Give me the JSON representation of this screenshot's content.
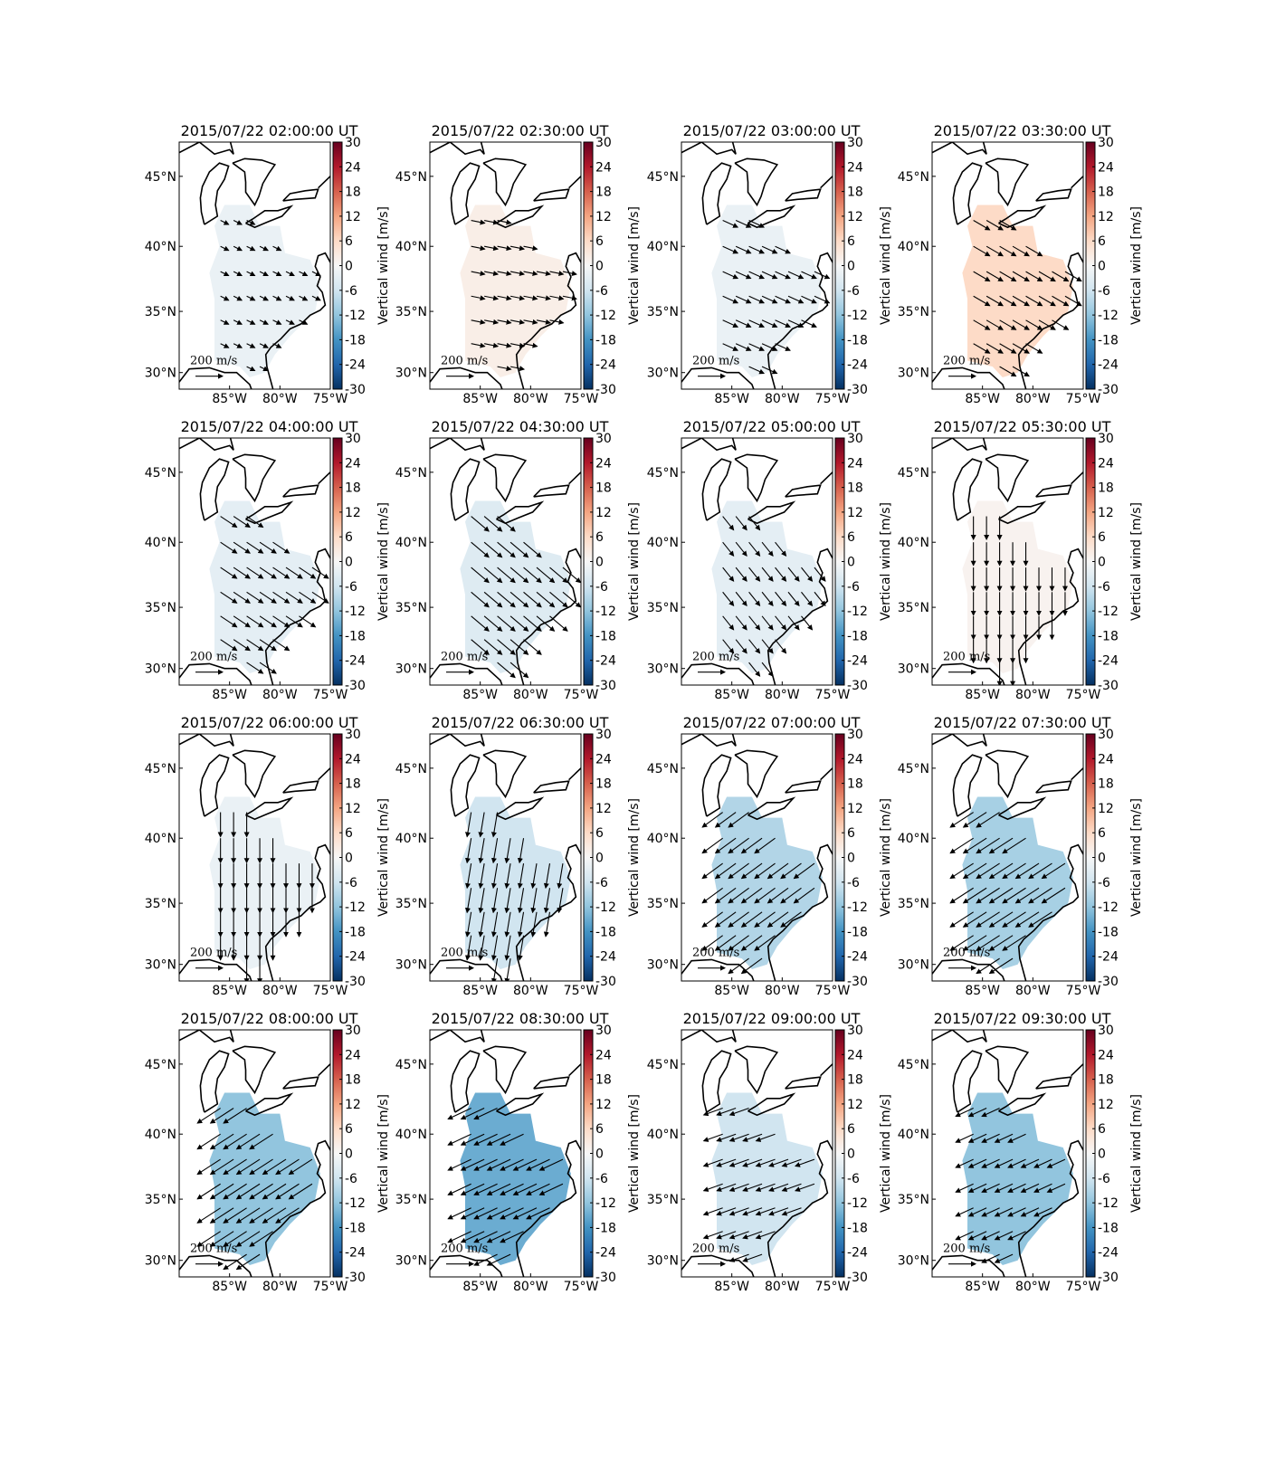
{
  "figure": {
    "colorbar_label": "Vertical wind [m/s]",
    "colorbar_lim": [
      -30,
      30
    ],
    "colorbar_ticks": [
      -30,
      -24,
      -18,
      -12,
      -6,
      0,
      6,
      12,
      18,
      24,
      30
    ],
    "lonlim": [
      -90,
      -75
    ],
    "latlim": [
      28.6,
      47.3
    ],
    "xticks": [
      {
        "value": -85,
        "label": "85°W"
      },
      {
        "value": -80,
        "label": "80°W"
      },
      {
        "value": -75,
        "label": "75°W"
      }
    ],
    "yticks": [
      {
        "value": 30,
        "label": "30°N"
      },
      {
        "value": 35,
        "label": "35°N"
      },
      {
        "value": 40,
        "label": "40°N"
      },
      {
        "value": 45,
        "label": "45°N"
      }
    ],
    "scale": {
      "value": 200,
      "label": "200 m/s"
    },
    "panels": [
      {
        "title": "2015/07/22 02:00:00 UT",
        "vertical_wind": -2,
        "u": 60,
        "v": -30
      },
      {
        "title": "2015/07/22 02:30:00 UT",
        "vertical_wind": 2,
        "u": 100,
        "v": -20
      },
      {
        "title": "2015/07/22 03:00:00 UT",
        "vertical_wind": -2,
        "u": 110,
        "v": -50
      },
      {
        "title": "2015/07/22 03:30:00 UT",
        "vertical_wind": 6,
        "u": 120,
        "v": -70
      },
      {
        "title": "2015/07/22 04:00:00 UT",
        "vertical_wind": -3,
        "u": 120,
        "v": -80
      },
      {
        "title": "2015/07/22 04:30:00 UT",
        "vertical_wind": -4,
        "u": 130,
        "v": -110
      },
      {
        "title": "2015/07/22 05:00:00 UT",
        "vertical_wind": -3,
        "u": 80,
        "v": -100
      },
      {
        "title": "2015/07/22 05:30:00 UT",
        "vertical_wind": 1,
        "u": 0,
        "v": -170
      },
      {
        "title": "2015/07/22 06:00:00 UT",
        "vertical_wind": -2,
        "u": 0,
        "v": -180
      },
      {
        "title": "2015/07/22 06:30:00 UT",
        "vertical_wind": -6,
        "u": -30,
        "v": -180
      },
      {
        "title": "2015/07/22 07:00:00 UT",
        "vertical_wind": -9,
        "u": -150,
        "v": -110
      },
      {
        "title": "2015/07/22 07:30:00 UT",
        "vertical_wind": -10,
        "u": -170,
        "v": -110
      },
      {
        "title": "2015/07/22 08:00:00 UT",
        "vertical_wind": -12,
        "u": -170,
        "v": -110
      },
      {
        "title": "2015/07/22 08:30:00 UT",
        "vertical_wind": -15,
        "u": -170,
        "v": -80
      },
      {
        "title": "2015/07/22 09:00:00 UT",
        "vertical_wind": -6,
        "u": -140,
        "v": -50
      },
      {
        "title": "2015/07/22 09:30:00 UT",
        "vertical_wind": -12,
        "u": -130,
        "v": -60
      }
    ]
  }
}
